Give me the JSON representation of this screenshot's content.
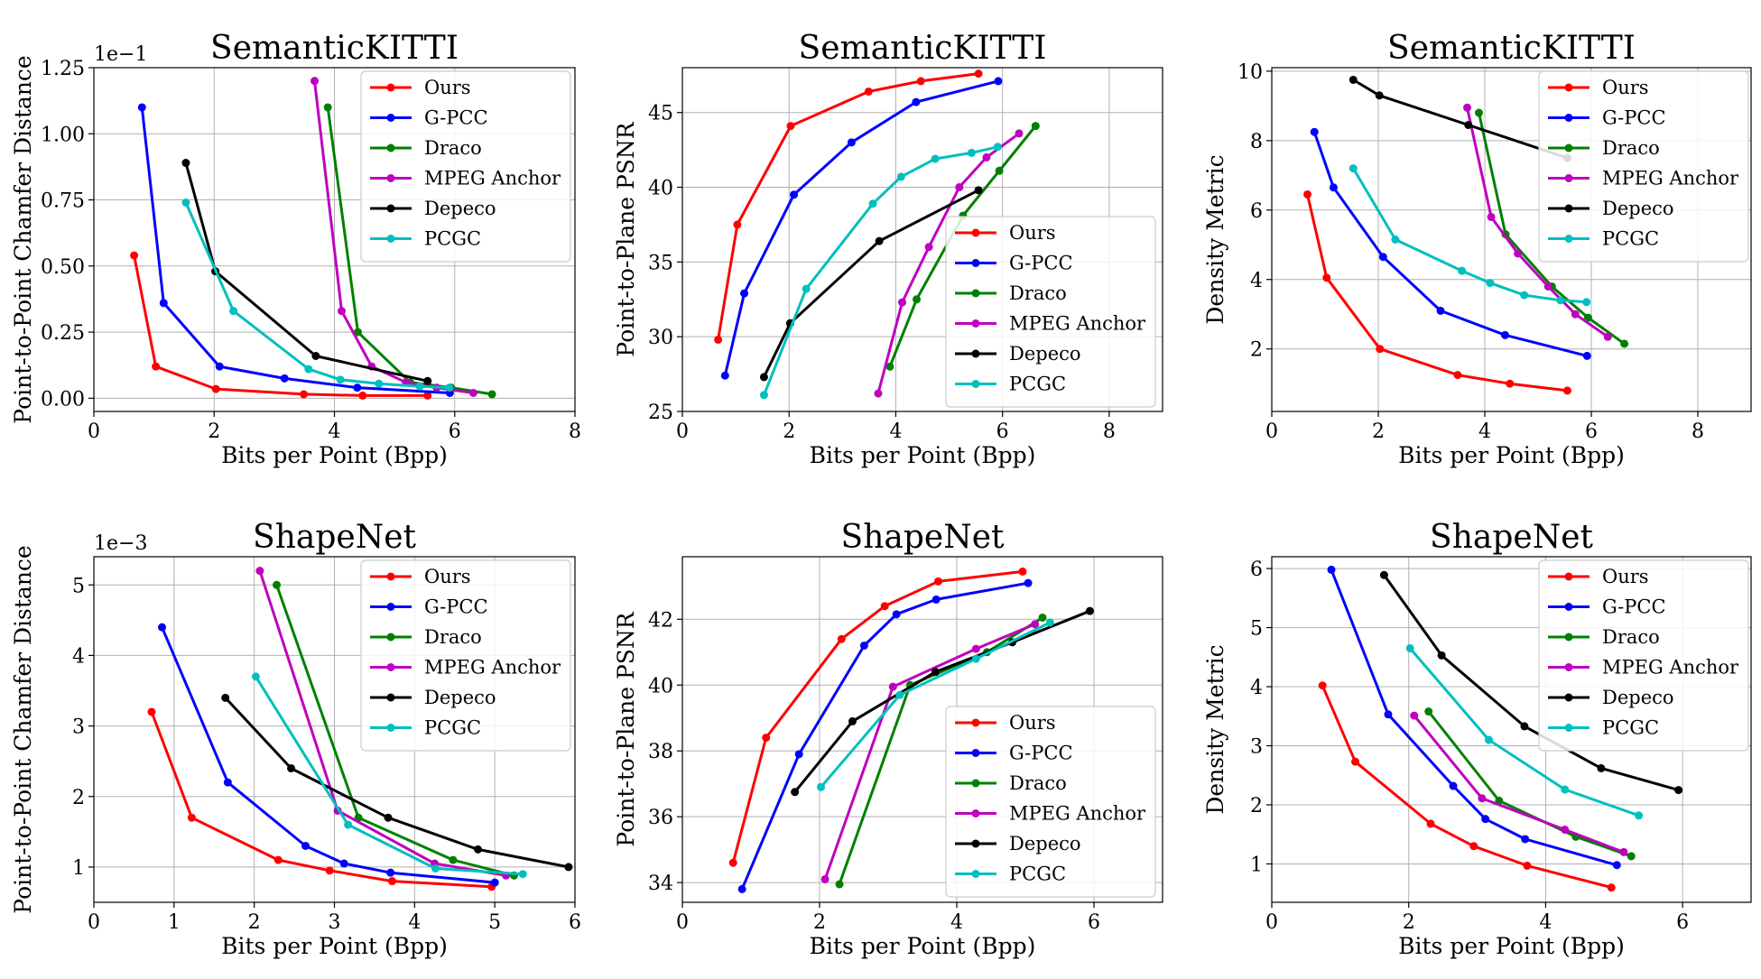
{
  "colors": {
    "Ours": "#ff0000",
    "G-PCC": "#0000ff",
    "Draco": "#008000",
    "MPEG Anchor": "#bf00bf",
    "Depeco": "#000000",
    "PCGC": "#00bfbf"
  },
  "chart_data": [
    {
      "type": "line",
      "title": "SemanticKITTI",
      "xlabel": "Bits per Point (Bpp)",
      "ylabel": "Point-to-Point Chamfer Distance",
      "offset_text": "1e−1",
      "xlim": [
        0,
        8
      ],
      "ylim": [
        -0.05,
        1.25
      ],
      "xticks": [
        0,
        2,
        4,
        6,
        8
      ],
      "yticks": [
        0.0,
        0.25,
        0.5,
        0.75,
        1.0,
        1.25
      ],
      "ytick_labels": [
        "0.00",
        "0.25",
        "0.50",
        "0.75",
        "1.00",
        "1.25"
      ],
      "grid": true,
      "legend_position": "upper right",
      "series": [
        {
          "name": "Ours",
          "x": [
            0.67,
            1.03,
            2.03,
            3.49,
            4.47,
            5.55
          ],
          "y": [
            0.54,
            0.12,
            0.035,
            0.015,
            0.01,
            0.01
          ]
        },
        {
          "name": "G-PCC",
          "x": [
            0.8,
            1.16,
            2.09,
            3.17,
            4.38,
            5.92
          ],
          "y": [
            1.1,
            0.36,
            0.12,
            0.075,
            0.04,
            0.02
          ]
        },
        {
          "name": "Draco",
          "x": [
            3.89,
            4.39,
            5.26,
            5.94,
            6.62
          ],
          "y": [
            1.1,
            0.25,
            0.06,
            0.04,
            0.015
          ]
        },
        {
          "name": "MPEG Anchor",
          "x": [
            3.67,
            4.12,
            4.62,
            5.19,
            5.7,
            6.31
          ],
          "y": [
            1.2,
            0.33,
            0.12,
            0.06,
            0.04,
            0.02
          ]
        },
        {
          "name": "Depeco",
          "x": [
            1.53,
            2.02,
            3.69,
            5.55
          ],
          "y": [
            0.89,
            0.48,
            0.16,
            0.065
          ]
        },
        {
          "name": "PCGC",
          "x": [
            1.53,
            2.32,
            3.57,
            4.1,
            4.74,
            5.42,
            5.91
          ],
          "y": [
            0.74,
            0.33,
            0.11,
            0.07,
            0.055,
            0.045,
            0.04
          ]
        }
      ]
    },
    {
      "type": "line",
      "title": "SemanticKITTI",
      "xlabel": "Bits per Point (Bpp)",
      "ylabel": "Point-to-Plane PSNR",
      "offset_text": "",
      "xlim": [
        0,
        9
      ],
      "ylim": [
        25,
        48
      ],
      "xticks": [
        0,
        2,
        4,
        6,
        8
      ],
      "yticks": [
        25,
        30,
        35,
        40,
        45
      ],
      "ytick_labels": [
        "25",
        "30",
        "35",
        "40",
        "45"
      ],
      "grid": true,
      "legend_position": "lower right",
      "series": [
        {
          "name": "Ours",
          "x": [
            0.67,
            1.03,
            2.03,
            3.49,
            4.47,
            5.55
          ],
          "y": [
            29.8,
            37.5,
            44.1,
            46.4,
            47.1,
            47.6
          ]
        },
        {
          "name": "G-PCC",
          "x": [
            0.8,
            1.16,
            2.09,
            3.17,
            4.38,
            5.92
          ],
          "y": [
            27.4,
            32.9,
            39.5,
            43.0,
            45.7,
            47.1
          ]
        },
        {
          "name": "Draco",
          "x": [
            3.89,
            4.39,
            5.26,
            5.94,
            6.62
          ],
          "y": [
            28.0,
            32.5,
            38.1,
            41.1,
            44.1
          ]
        },
        {
          "name": "MPEG Anchor",
          "x": [
            3.67,
            4.12,
            4.62,
            5.19,
            5.7,
            6.31
          ],
          "y": [
            26.2,
            32.3,
            36.0,
            40.0,
            42.0,
            43.6
          ]
        },
        {
          "name": "Depeco",
          "x": [
            1.53,
            2.02,
            3.69,
            5.55
          ],
          "y": [
            27.3,
            30.9,
            36.4,
            39.8
          ]
        },
        {
          "name": "PCGC",
          "x": [
            1.53,
            2.32,
            3.57,
            4.1,
            4.74,
            5.42,
            5.91
          ],
          "y": [
            26.1,
            33.2,
            38.9,
            40.7,
            41.9,
            42.3,
            42.7
          ]
        }
      ]
    },
    {
      "type": "line",
      "title": "SemanticKITTI",
      "xlabel": "Bits per Point (Bpp)",
      "ylabel": "Density Metric",
      "offset_text": "",
      "xlim": [
        0,
        9
      ],
      "ylim": [
        0.2,
        10.1
      ],
      "xticks": [
        0,
        2,
        4,
        6,
        8
      ],
      "yticks": [
        2,
        4,
        6,
        8,
        10
      ],
      "ytick_labels": [
        "2",
        "4",
        "6",
        "8",
        "10"
      ],
      "grid": true,
      "legend_position": "upper right",
      "series": [
        {
          "name": "Ours",
          "x": [
            0.67,
            1.03,
            2.03,
            3.49,
            4.47,
            5.55
          ],
          "y": [
            6.45,
            4.05,
            2.0,
            1.25,
            1.0,
            0.8
          ]
        },
        {
          "name": "G-PCC",
          "x": [
            0.8,
            1.16,
            2.09,
            3.17,
            4.38,
            5.92
          ],
          "y": [
            8.25,
            6.65,
            4.65,
            3.1,
            2.4,
            1.8
          ]
        },
        {
          "name": "Draco",
          "x": [
            3.89,
            4.39,
            5.26,
            5.94,
            6.62
          ],
          "y": [
            8.8,
            5.3,
            3.8,
            2.9,
            2.15
          ]
        },
        {
          "name": "MPEG Anchor",
          "x": [
            3.67,
            4.12,
            4.62,
            5.19,
            5.7,
            6.31
          ],
          "y": [
            8.95,
            5.8,
            4.75,
            3.8,
            3.0,
            2.35
          ]
        },
        {
          "name": "Depeco",
          "x": [
            1.53,
            2.02,
            3.69,
            5.55
          ],
          "y": [
            9.75,
            9.3,
            8.45,
            7.5
          ]
        },
        {
          "name": "PCGC",
          "x": [
            1.53,
            2.32,
            3.57,
            4.1,
            4.74,
            5.42,
            5.91
          ],
          "y": [
            7.2,
            5.15,
            4.25,
            3.9,
            3.55,
            3.4,
            3.35
          ]
        }
      ]
    },
    {
      "type": "line",
      "title": "ShapeNet",
      "xlabel": "Bits per Point (Bpp)",
      "ylabel": "Point-to-Point Chamfer Distance",
      "offset_text": "1e−3",
      "xlim": [
        0,
        6
      ],
      "ylim": [
        0.5,
        5.4
      ],
      "xticks": [
        0,
        1,
        2,
        3,
        4,
        5,
        6
      ],
      "yticks": [
        1,
        2,
        3,
        4,
        5
      ],
      "ytick_labels": [
        "1",
        "2",
        "3",
        "4",
        "5"
      ],
      "grid": true,
      "legend_position": "upper right",
      "series": [
        {
          "name": "Ours",
          "x": [
            0.72,
            1.22,
            2.3,
            2.94,
            3.72,
            4.96
          ],
          "y": [
            3.2,
            1.7,
            1.1,
            0.95,
            0.8,
            0.72
          ]
        },
        {
          "name": "G-PCC",
          "x": [
            0.85,
            1.67,
            2.64,
            3.12,
            3.7,
            5.0
          ],
          "y": [
            4.4,
            2.2,
            1.3,
            1.05,
            0.92,
            0.78
          ]
        },
        {
          "name": "Draco",
          "x": [
            2.28,
            3.3,
            4.48,
            5.24
          ],
          "y": [
            5.0,
            1.7,
            1.1,
            0.88
          ]
        },
        {
          "name": "MPEG Anchor",
          "x": [
            2.07,
            3.04,
            4.25,
            5.14
          ],
          "y": [
            5.2,
            1.8,
            1.05,
            0.88
          ]
        },
        {
          "name": "Depeco",
          "x": [
            1.64,
            2.46,
            3.67,
            4.79,
            5.92
          ],
          "y": [
            3.4,
            2.4,
            1.7,
            1.25,
            1.0
          ]
        },
        {
          "name": "PCGC",
          "x": [
            2.02,
            3.17,
            4.26,
            5.35
          ],
          "y": [
            3.7,
            1.6,
            0.98,
            0.9
          ]
        }
      ]
    },
    {
      "type": "line",
      "title": "ShapeNet",
      "xlabel": "Bits per Point (Bpp)",
      "ylabel": "Point-to-Plane PSNR",
      "offset_text": "",
      "xlim": [
        0,
        7
      ],
      "ylim": [
        33.4,
        43.9
      ],
      "xticks": [
        0,
        2,
        4,
        6
      ],
      "yticks": [
        34,
        36,
        38,
        40,
        42
      ],
      "ytick_labels": [
        "34",
        "36",
        "38",
        "40",
        "42"
      ],
      "grid": true,
      "legend_position": "lower right",
      "series": [
        {
          "name": "Ours",
          "x": [
            0.74,
            1.22,
            2.32,
            2.95,
            3.73,
            4.96
          ],
          "y": [
            34.6,
            38.4,
            41.4,
            42.4,
            43.15,
            43.45
          ]
        },
        {
          "name": "G-PCC",
          "x": [
            0.87,
            1.7,
            2.65,
            3.12,
            3.7,
            5.04
          ],
          "y": [
            33.8,
            37.9,
            41.2,
            42.15,
            42.6,
            43.1
          ]
        },
        {
          "name": "Draco",
          "x": [
            2.29,
            3.32,
            4.44,
            5.25
          ],
          "y": [
            33.95,
            40.0,
            41.0,
            42.05
          ]
        },
        {
          "name": "MPEG Anchor",
          "x": [
            2.08,
            3.07,
            4.28,
            5.14
          ],
          "y": [
            34.1,
            39.95,
            41.1,
            41.85
          ]
        },
        {
          "name": "Depeco",
          "x": [
            1.64,
            2.48,
            3.69,
            4.81,
            5.94
          ],
          "y": [
            36.75,
            38.9,
            40.4,
            41.3,
            42.25
          ]
        },
        {
          "name": "PCGC",
          "x": [
            2.02,
            3.17,
            4.28,
            5.36
          ],
          "y": [
            36.9,
            39.7,
            40.8,
            41.9
          ]
        }
      ]
    },
    {
      "type": "line",
      "title": "ShapeNet",
      "xlabel": "Bits per Point (Bpp)",
      "ylabel": "Density Metric",
      "offset_text": "",
      "xlim": [
        0,
        7
      ],
      "ylim": [
        0.35,
        6.2
      ],
      "xticks": [
        0,
        2,
        4,
        6
      ],
      "yticks": [
        1,
        2,
        3,
        4,
        5,
        6
      ],
      "ytick_labels": [
        "1",
        "2",
        "3",
        "4",
        "5",
        "6"
      ],
      "grid": true,
      "legend_position": "upper right",
      "series": [
        {
          "name": "Ours",
          "x": [
            0.74,
            1.22,
            2.32,
            2.95,
            3.73,
            4.96
          ],
          "y": [
            4.02,
            2.73,
            1.68,
            1.3,
            0.97,
            0.6
          ]
        },
        {
          "name": "G-PCC",
          "x": [
            0.87,
            1.7,
            2.65,
            3.12,
            3.7,
            5.04
          ],
          "y": [
            5.98,
            3.53,
            2.32,
            1.76,
            1.42,
            0.98
          ]
        },
        {
          "name": "Draco",
          "x": [
            2.29,
            3.32,
            4.44,
            5.25
          ],
          "y": [
            3.58,
            2.07,
            1.46,
            1.13
          ]
        },
        {
          "name": "MPEG Anchor",
          "x": [
            2.08,
            3.07,
            4.28,
            5.14
          ],
          "y": [
            3.51,
            2.11,
            1.58,
            1.2
          ]
        },
        {
          "name": "Depeco",
          "x": [
            1.64,
            2.48,
            3.69,
            4.81,
            5.94
          ],
          "y": [
            5.89,
            4.53,
            3.33,
            2.62,
            2.25
          ]
        },
        {
          "name": "PCGC",
          "x": [
            2.02,
            3.17,
            4.28,
            5.36
          ],
          "y": [
            4.65,
            3.1,
            2.26,
            1.82
          ]
        }
      ]
    }
  ]
}
